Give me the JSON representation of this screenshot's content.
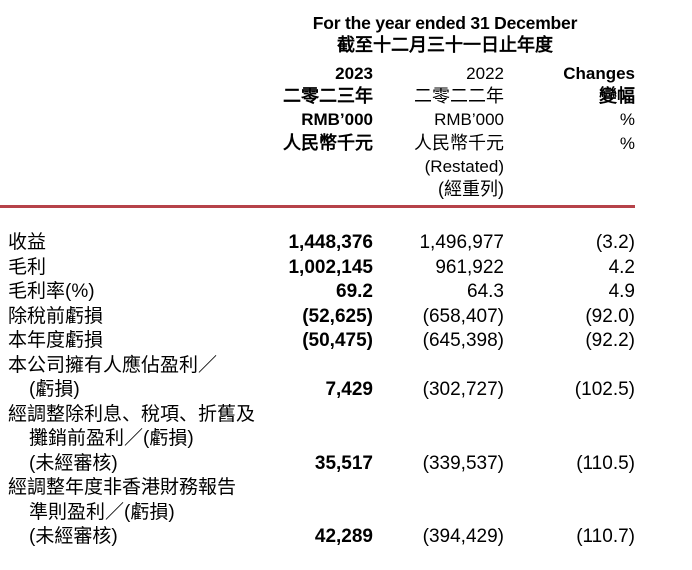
{
  "table": {
    "period": {
      "en": "For the year ended 31 December",
      "zh": "截至十二月三十一日止年度"
    },
    "col_2023": {
      "year": "2023",
      "year_zh": "二零二三年",
      "unit": "RMB’000",
      "unit_zh": "人民幣千元"
    },
    "col_2022": {
      "year": "2022",
      "year_zh": "二零二二年",
      "unit": "RMB’000",
      "unit_zh": "人民幣千元",
      "restated": "(Restated)",
      "restated_zh": "(經重列)"
    },
    "col_changes": {
      "label": "Changes",
      "label_zh": "變幅",
      "unit": "%"
    },
    "rows": [
      {
        "label": "收益",
        "indent": false,
        "y2023": "1,448,376",
        "y2022": "1,496,977",
        "change": "(3.2)"
      },
      {
        "label": "毛利",
        "indent": false,
        "y2023": "1,002,145",
        "y2022": "961,922",
        "change": "4.2"
      },
      {
        "label": "毛利率(%)",
        "indent": false,
        "y2023": "69.2",
        "y2022": "64.3",
        "change": "4.9"
      },
      {
        "label": "除稅前虧損",
        "indent": false,
        "y2023": "(52,625)",
        "y2022": "(658,407)",
        "change": "(92.0)"
      },
      {
        "label": "本年度虧損",
        "indent": false,
        "y2023": "(50,475)",
        "y2022": "(645,398)",
        "change": "(92.2)"
      },
      {
        "label": "本公司擁有人應佔盈利／",
        "indent": false,
        "y2023": "",
        "y2022": "",
        "change": ""
      },
      {
        "label": "(虧損)",
        "indent": true,
        "y2023": "7,429",
        "y2022": "(302,727)",
        "change": "(102.5)"
      },
      {
        "label": "經調整除利息、稅項、折舊及",
        "indent": false,
        "y2023": "",
        "y2022": "",
        "change": ""
      },
      {
        "label": "攤銷前盈利／(虧損)",
        "indent": true,
        "y2023": "",
        "y2022": "",
        "change": ""
      },
      {
        "label": "(未經審核)",
        "indent": true,
        "y2023": "35,517",
        "y2022": "(339,537)",
        "change": "(110.5)"
      },
      {
        "label": "經調整年度非香港財務報告",
        "indent": false,
        "y2023": "",
        "y2022": "",
        "change": ""
      },
      {
        "label": "準則盈利／(虧損)",
        "indent": true,
        "y2023": "",
        "y2022": "",
        "change": ""
      },
      {
        "label": "(未經審核)",
        "indent": true,
        "y2023": "42,289",
        "y2022": "(394,429)",
        "change": "(110.7)"
      }
    ]
  },
  "colors": {
    "rule_red": "#b64249",
    "text": "#000000",
    "background": "#ffffff"
  }
}
